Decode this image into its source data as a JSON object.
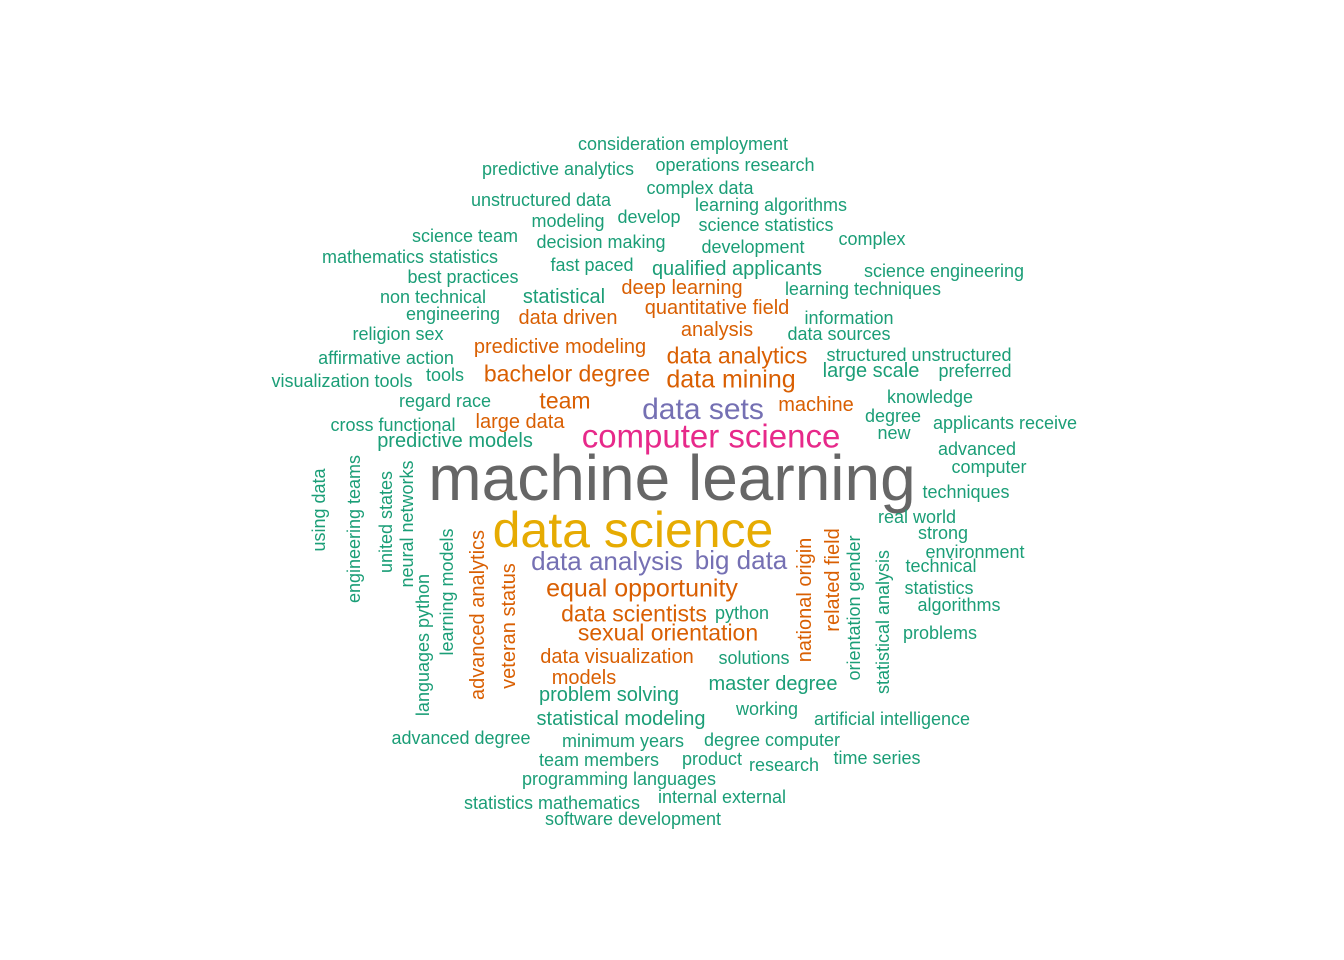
{
  "colors": {
    "green": "#1b9e77",
    "orange": "#d95f02",
    "purple": "#7570b3",
    "magenta": "#e7298a",
    "yellow": "#e6ab02",
    "gray": "#666666"
  },
  "words": [
    {
      "text": "machine learning",
      "weight": 10
    },
    {
      "text": "data science",
      "weight": 8
    },
    {
      "text": "computer science",
      "weight": 6
    },
    {
      "text": "data sets",
      "weight": 5
    },
    {
      "text": "data analysis",
      "weight": 4
    },
    {
      "text": "big data",
      "weight": 4
    },
    {
      "text": "equal opportunity",
      "weight": 3
    },
    {
      "text": "data scientists",
      "weight": 3
    },
    {
      "text": "sexual orientation",
      "weight": 3
    },
    {
      "text": "data analytics",
      "weight": 3
    },
    {
      "text": "data mining",
      "weight": 3
    },
    {
      "text": "bachelor degree",
      "weight": 3
    },
    {
      "text": "team",
      "weight": 3
    },
    {
      "text": "analysis",
      "weight": 2
    },
    {
      "text": "quantitative field",
      "weight": 2
    },
    {
      "text": "deep learning",
      "weight": 2
    },
    {
      "text": "data driven",
      "weight": 2
    },
    {
      "text": "predictive modeling",
      "weight": 2
    },
    {
      "text": "machine",
      "weight": 2
    },
    {
      "text": "large data",
      "weight": 2
    },
    {
      "text": "data visualization",
      "weight": 2
    },
    {
      "text": "models",
      "weight": 2
    },
    {
      "text": "advanced analytics",
      "weight": 2
    },
    {
      "text": "veteran status",
      "weight": 2
    },
    {
      "text": "national origin",
      "weight": 2
    },
    {
      "text": "related field",
      "weight": 2
    },
    {
      "text": "consideration employment",
      "weight": 1
    },
    {
      "text": "predictive analytics",
      "weight": 1
    },
    {
      "text": "operations research",
      "weight": 1
    },
    {
      "text": "complex data",
      "weight": 1
    },
    {
      "text": "unstructured data",
      "weight": 1
    },
    {
      "text": "learning algorithms",
      "weight": 1
    },
    {
      "text": "modeling",
      "weight": 1
    },
    {
      "text": "develop",
      "weight": 1
    },
    {
      "text": "science statistics",
      "weight": 1
    },
    {
      "text": "science team",
      "weight": 1
    },
    {
      "text": "decision making",
      "weight": 1
    },
    {
      "text": "complex",
      "weight": 1
    },
    {
      "text": "development",
      "weight": 1
    },
    {
      "text": "mathematics statistics",
      "weight": 1
    },
    {
      "text": "fast paced",
      "weight": 1
    },
    {
      "text": "qualified applicants",
      "weight": 1
    },
    {
      "text": "science engineering",
      "weight": 1
    },
    {
      "text": "best practices",
      "weight": 1
    },
    {
      "text": "learning techniques",
      "weight": 1
    },
    {
      "text": "non technical",
      "weight": 1
    },
    {
      "text": "statistical",
      "weight": 1
    },
    {
      "text": "engineering",
      "weight": 1
    },
    {
      "text": "information",
      "weight": 1
    },
    {
      "text": "religion sex",
      "weight": 1
    },
    {
      "text": "data sources",
      "weight": 1
    },
    {
      "text": "affirmative action",
      "weight": 1
    },
    {
      "text": "structured unstructured",
      "weight": 1
    },
    {
      "text": "visualization tools",
      "weight": 1
    },
    {
      "text": "tools",
      "weight": 1
    },
    {
      "text": "large scale",
      "weight": 1
    },
    {
      "text": "preferred",
      "weight": 1
    },
    {
      "text": "knowledge",
      "weight": 1
    },
    {
      "text": "regard race",
      "weight": 1
    },
    {
      "text": "degree",
      "weight": 1
    },
    {
      "text": "applicants receive",
      "weight": 1
    },
    {
      "text": "cross functional",
      "weight": 1
    },
    {
      "text": "new",
      "weight": 1
    },
    {
      "text": "predictive models",
      "weight": 1
    },
    {
      "text": "advanced",
      "weight": 1
    },
    {
      "text": "computer",
      "weight": 1
    },
    {
      "text": "techniques",
      "weight": 1
    },
    {
      "text": "real world",
      "weight": 1
    },
    {
      "text": "strong",
      "weight": 1
    },
    {
      "text": "environment",
      "weight": 1
    },
    {
      "text": "technical",
      "weight": 1
    },
    {
      "text": "statistics",
      "weight": 1
    },
    {
      "text": "algorithms",
      "weight": 1
    },
    {
      "text": "python",
      "weight": 1
    },
    {
      "text": "problems",
      "weight": 1
    },
    {
      "text": "solutions",
      "weight": 1
    },
    {
      "text": "master degree",
      "weight": 1
    },
    {
      "text": "problem solving",
      "weight": 1
    },
    {
      "text": "working",
      "weight": 1
    },
    {
      "text": "artificial intelligence",
      "weight": 1
    },
    {
      "text": "statistical modeling",
      "weight": 1
    },
    {
      "text": "advanced degree",
      "weight": 1
    },
    {
      "text": "minimum years",
      "weight": 1
    },
    {
      "text": "degree computer",
      "weight": 1
    },
    {
      "text": "team members",
      "weight": 1
    },
    {
      "text": "product",
      "weight": 1
    },
    {
      "text": "research",
      "weight": 1
    },
    {
      "text": "time series",
      "weight": 1
    },
    {
      "text": "programming languages",
      "weight": 1
    },
    {
      "text": "statistics mathematics",
      "weight": 1
    },
    {
      "text": "internal external",
      "weight": 1
    },
    {
      "text": "software development",
      "weight": 1
    },
    {
      "text": "using data",
      "weight": 1
    },
    {
      "text": "engineering teams",
      "weight": 1
    },
    {
      "text": "united states",
      "weight": 1
    },
    {
      "text": "neural networks",
      "weight": 1
    },
    {
      "text": "languages python",
      "weight": 1
    },
    {
      "text": "learning models",
      "weight": 1
    },
    {
      "text": "orientation gender",
      "weight": 1
    },
    {
      "text": "statistical analysis",
      "weight": 1
    }
  ]
}
